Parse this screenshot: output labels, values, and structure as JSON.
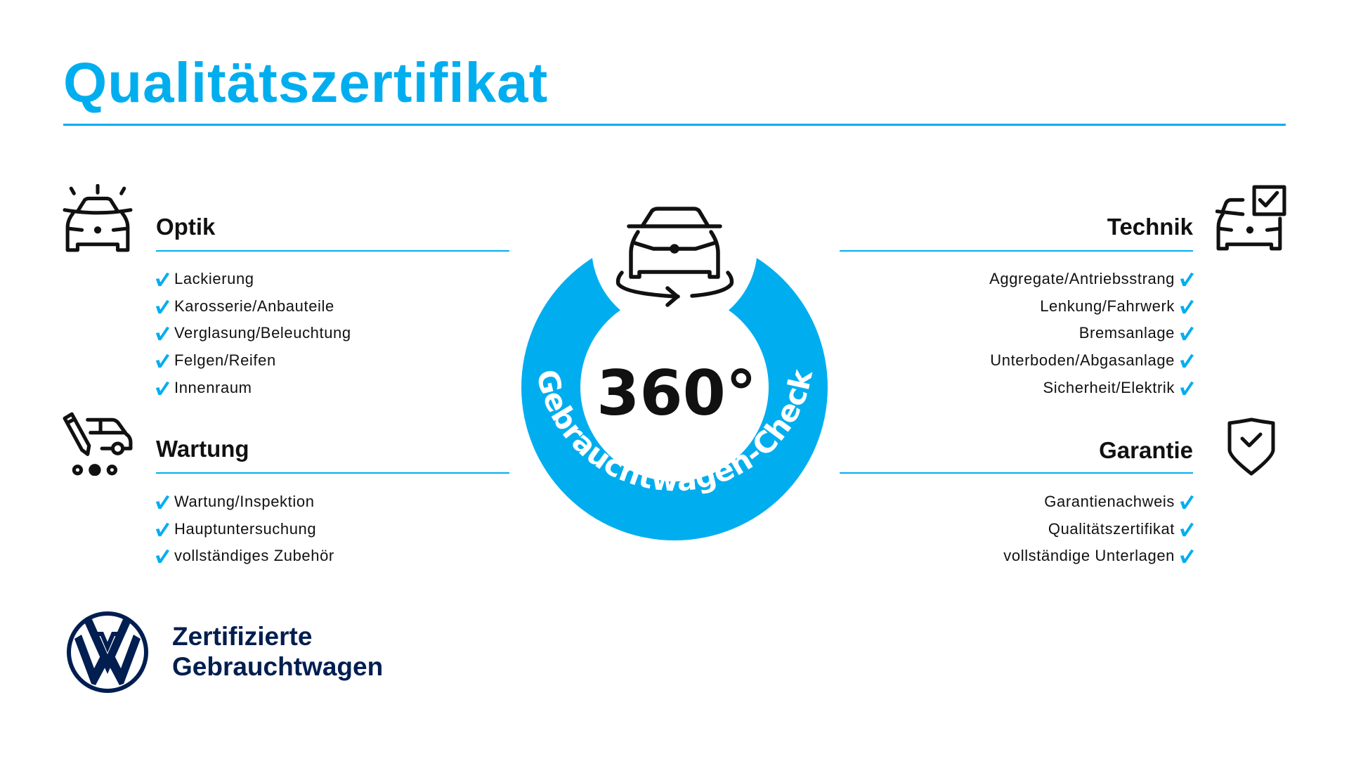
{
  "header": {
    "title": "Qualitätszertifikat"
  },
  "colors": {
    "accent": "#00aeef",
    "brand_navy": "#001e50",
    "text": "#111111"
  },
  "badge": {
    "value": "360°",
    "arc_text": "Gebrauchtwagen-Check",
    "icon": "car-360-rotate-icon"
  },
  "sections": {
    "optik": {
      "title": "Optik",
      "icon": "car-lights-icon",
      "items": [
        "Lackierung",
        "Karosserie/Anbauteile",
        "Verglasung/Beleuchtung",
        "Felgen/Reifen",
        "Innenraum"
      ]
    },
    "wartung": {
      "title": "Wartung",
      "icon": "service-van-icon",
      "items": [
        "Wartung/Inspektion",
        "Hauptuntersuchung",
        "vollständiges Zubehör"
      ]
    },
    "technik": {
      "title": "Technik",
      "icon": "car-checkbox-icon",
      "items": [
        "Aggregate/Antriebsstrang",
        "Lenkung/Fahrwerk",
        "Bremsanlage",
        "Unterboden/Abgasanlage",
        "Sicherheit/Elektrik"
      ]
    },
    "garantie": {
      "title": "Garantie",
      "icon": "shield-check-icon",
      "items": [
        "Garantienachweis",
        "Qualitätszertifikat",
        "vollständige Unterlagen"
      ]
    }
  },
  "brand": {
    "logo": "vw-logo",
    "line1": "Zertifizierte",
    "line2": "Gebrauchtwagen"
  }
}
